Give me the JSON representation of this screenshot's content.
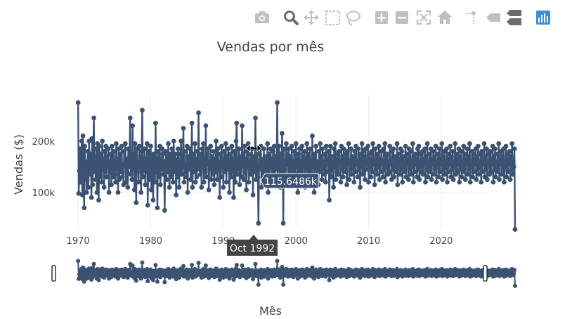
{
  "chart_data": {
    "type": "line",
    "title": "Vendas por mês",
    "xlabel": "Mês",
    "ylabel": "Vendas ($)",
    "x_range": [
      1969.5,
      2023.3
    ],
    "y_range": [
      30000,
      290000
    ],
    "x_ticks": [
      {
        "value": 1970,
        "label": "1970"
      },
      {
        "value": 1980,
        "label": "1980"
      },
      {
        "value": 1990,
        "label": "1990"
      },
      {
        "value": 2000,
        "label": "2000"
      },
      {
        "value": 2010,
        "label": "2010"
      },
      {
        "value": 2020,
        "label": "2020"
      }
    ],
    "y_ticks": [
      {
        "value": 100000,
        "label": "100k"
      },
      {
        "value": 200000,
        "label": "200k"
      }
    ],
    "grid": true,
    "legend": "none",
    "series": [
      {
        "color": "#3b5272",
        "start_year": 1970,
        "points_per_year": 12,
        "values_k": [
          275,
          98,
          142,
          185,
          120,
          160,
          200,
          95,
          210,
          130,
          70,
          190,
          145,
          160,
          100,
          125,
          180,
          110,
          200,
          150,
          135,
          175,
          90,
          205,
          115,
          170,
          245,
          140,
          160,
          125,
          185,
          100,
          195,
          150,
          85,
          190,
          155,
          130,
          175,
          120,
          200,
          145,
          165,
          110,
          180,
          140,
          190,
          130,
          170,
          150,
          185,
          100,
          160,
          140,
          175,
          115,
          190,
          150,
          130,
          180,
          155,
          135,
          120,
          195,
          145,
          165,
          100,
          185,
          125,
          160,
          175,
          140,
          190,
          130,
          150,
          115,
          180,
          155,
          195,
          120,
          165,
          140,
          110,
          185,
          150,
          170,
          245,
          135,
          160,
          125,
          230,
          145,
          175,
          105,
          195,
          155,
          80,
          185,
          140,
          160,
          120,
          190,
          150,
          170,
          100,
          180,
          260,
          130,
          155,
          145,
          185,
          115,
          165,
          140,
          195,
          75,
          150,
          180,
          125,
          160,
          190,
          105,
          170,
          145,
          85,
          175,
          155,
          120,
          235,
          140,
          165,
          70,
          180,
          150,
          130,
          190,
          115,
          165,
          145,
          185,
          175,
          135,
          160,
          65,
          155,
          180,
          125,
          170,
          140,
          195,
          145,
          110,
          175,
          160,
          130,
          185,
          150,
          120,
          200,
          140,
          165,
          175,
          95,
          155,
          130,
          185,
          160,
          110,
          145,
          175,
          200,
          135,
          150,
          165,
          225,
          120,
          180,
          140,
          155,
          130,
          190,
          100,
          170,
          145,
          160,
          185,
          125,
          150,
          235,
          110,
          175,
          155,
          140,
          195,
          120,
          165,
          130,
          180,
          150,
          255,
          145,
          160,
          135,
          175,
          110,
          185,
          150,
          195,
          120,
          165,
          140,
          230,
          130,
          175,
          155,
          185,
          105,
          160,
          145,
          190,
          125,
          170,
          150,
          135,
          180,
          115,
          165,
          140,
          200,
          155,
          125,
          185,
          145,
          160,
          90,
          175,
          130,
          190,
          150,
          165,
          110,
          180,
          140,
          155,
          195,
          120,
          170,
          145,
          185,
          160,
          100,
          150,
          175,
          130,
          190,
          140,
          165,
          90,
          180,
          150,
          120,
          200,
          235,
          135,
          160,
          145,
          185,
          115,
          170,
          150,
          130,
          230,
          155,
          175,
          125,
          190,
          140,
          165,
          105,
          180,
          150,
          195,
          120,
          160,
          145,
          175,
          135,
          185,
          155,
          95,
          170,
          140,
          160,
          245,
          125,
          150,
          180,
          130,
          40,
          155,
          175,
          145,
          190,
          110,
          165,
          150,
          135,
          185,
          120,
          170,
          145,
          160,
          140,
          195,
          100,
          175,
          155,
          130,
          185,
          150,
          165,
          120,
          180,
          140,
          190,
          125,
          170,
          155,
          145,
          275,
          135,
          160,
          190,
          150,
          110,
          175,
          140,
          215,
          165,
          40,
          185,
          145,
          160,
          130,
          195,
          155,
          175,
          120,
          185,
          150,
          140,
          170,
          125,
          190,
          145,
          160,
          115,
          180,
          150,
          135,
          195,
          155,
          165,
          100,
          175,
          145,
          185,
          120,
          160,
          140,
          190,
          130,
          170,
          150,
          180,
          110,
          165,
          145,
          195,
          125,
          175,
          155,
          135,
          185,
          140,
          160,
          120,
          210,
          150,
          165,
          100,
          175,
          145,
          190,
          130,
          160,
          155,
          115,
          180,
          140,
          195,
          150,
          170,
          125,
          185,
          145,
          160,
          135,
          175,
          120,
          190,
          155,
          165,
          140,
          180,
          85,
          150,
          190,
          130,
          170,
          145,
          160,
          110,
          185,
          150,
          195,
          125,
          165,
          140,
          175,
          135,
          180,
          155,
          160,
          120,
          190,
          145,
          170,
          130,
          185,
          150,
          165,
          140,
          175,
          115,
          180,
          155,
          195,
          125,
          160,
          145,
          185,
          135,
          170,
          150,
          165,
          120,
          180,
          140,
          190,
          155,
          160,
          130,
          185,
          145,
          175,
          110,
          165,
          150,
          195,
          135,
          180,
          140,
          170,
          125,
          185,
          155,
          160,
          145,
          190,
          120,
          175,
          150,
          165,
          130,
          180,
          140,
          195,
          155,
          160,
          115,
          185,
          145,
          170,
          135,
          175,
          150,
          190,
          125,
          165,
          140,
          180,
          155,
          160,
          130,
          185,
          145,
          195,
          120,
          170,
          150,
          175,
          135,
          160,
          140,
          190,
          155,
          165,
          125,
          180,
          145,
          185,
          130,
          170,
          150,
          160,
          140,
          195,
          115,
          175,
          155,
          165,
          135,
          185,
          145,
          180,
          120,
          170,
          150,
          160,
          140,
          190,
          130,
          175,
          155,
          165,
          125,
          185,
          145,
          180,
          135,
          160,
          150,
          195,
          120,
          170,
          140,
          175,
          155,
          165,
          130,
          185,
          145,
          190,
          125,
          160,
          150,
          175,
          140,
          180,
          135,
          165,
          155,
          185,
          120,
          170,
          145,
          195,
          130,
          160,
          150,
          175,
          140,
          185,
          125,
          165,
          155,
          180,
          135,
          170,
          145,
          190,
          120,
          160,
          150,
          175,
          130,
          185,
          140,
          165,
          155,
          195,
          125,
          170,
          145,
          180,
          135,
          160,
          150,
          185,
          120,
          175,
          140,
          165,
          155,
          190,
          130,
          170,
          145,
          180,
          125,
          160,
          150,
          195,
          135,
          175,
          140,
          165,
          155,
          185,
          120,
          170,
          145,
          180,
          130,
          160,
          150,
          190,
          140,
          175,
          125,
          165,
          155,
          185,
          135,
          170,
          145,
          195,
          120,
          160,
          150,
          180,
          130,
          175,
          140,
          165,
          155,
          185,
          125,
          170,
          145,
          190,
          135,
          160,
          150,
          175,
          120,
          180,
          140,
          165,
          155,
          195,
          130,
          170,
          145,
          185,
          125,
          160,
          150,
          175,
          135,
          180,
          140,
          165,
          155,
          190,
          120,
          170,
          145,
          185,
          130,
          160,
          150,
          175,
          140,
          195,
          125,
          165,
          155,
          180,
          135,
          170,
          145,
          185,
          120,
          160,
          150,
          190,
          130,
          175,
          140,
          165,
          155,
          180,
          125,
          170,
          145,
          195,
          135,
          160,
          150,
          185,
          28
        ]
      }
    ],
    "tooltip": {
      "value_label": "115.6486k",
      "x_label": "Oct 1992",
      "x": 1992.75,
      "y": 115648.6
    },
    "rangeslider": true
  },
  "modebar": {
    "icons": [
      {
        "name": "camera-icon"
      },
      {
        "name": "zoom-icon"
      },
      {
        "name": "pan-icon"
      },
      {
        "name": "box-select-icon"
      },
      {
        "name": "lasso-select-icon"
      },
      {
        "name": "zoom-in-icon"
      },
      {
        "name": "zoom-out-icon"
      },
      {
        "name": "autoscale-icon"
      },
      {
        "name": "reset-axes-icon"
      },
      {
        "name": "spike-lines-icon"
      },
      {
        "name": "hover-closest-icon"
      },
      {
        "name": "hover-compare-icon"
      },
      {
        "name": "plotly-logo-icon"
      }
    ]
  }
}
